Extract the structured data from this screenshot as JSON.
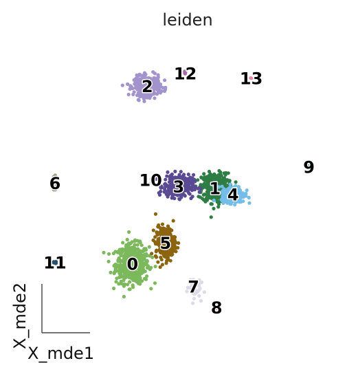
{
  "chart_data": {
    "type": "scatter",
    "title": "leiden",
    "xlabel": "X_mde1",
    "ylabel": "X_mde2",
    "xlim": [
      -1.0,
      1.0
    ],
    "ylim": [
      -1.0,
      1.0
    ],
    "grid": false,
    "legend": "on data",
    "clusters": [
      {
        "name": "0",
        "color": "#7cb95c",
        "center": [
          -0.28,
          -0.42
        ],
        "spread": [
          0.1,
          0.12
        ],
        "count": 520
      },
      {
        "name": "1",
        "color": "#2e7d45",
        "center": [
          0.22,
          0.05
        ],
        "spread": [
          0.08,
          0.09
        ],
        "count": 420
      },
      {
        "name": "2",
        "color": "#a393cc",
        "center": [
          -0.19,
          0.68
        ],
        "spread": [
          0.08,
          0.06
        ],
        "count": 380
      },
      {
        "name": "3",
        "color": "#5a4a94",
        "center": [
          0.0,
          0.06
        ],
        "spread": [
          0.09,
          0.07
        ],
        "count": 300
      },
      {
        "name": "4",
        "color": "#74bde9",
        "center": [
          0.33,
          0.01
        ],
        "spread": [
          0.07,
          0.05
        ],
        "count": 260
      },
      {
        "name": "5",
        "color": "#8c6410",
        "center": [
          -0.08,
          -0.29
        ],
        "spread": [
          0.06,
          0.1
        ],
        "count": 260
      },
      {
        "name": "6",
        "color": "#a89f88",
        "center": [
          -0.75,
          0.08
        ],
        "spread": [
          0.01,
          0.06
        ],
        "count": 30
      },
      {
        "name": "7",
        "color": "#dddbea",
        "center": [
          0.09,
          -0.56
        ],
        "spread": [
          0.04,
          0.07
        ],
        "count": 50
      },
      {
        "name": "8",
        "color": "#ea7b72",
        "center": [
          0.23,
          -0.69
        ],
        "spread": [
          0.02,
          0.01
        ],
        "count": 12
      },
      {
        "name": "9",
        "color": "#3d8fc0",
        "center": [
          0.79,
          0.18
        ],
        "spread": [
          0.01,
          0.01
        ],
        "count": 4
      },
      {
        "name": "10",
        "color": "#dcdcdc",
        "center": [
          -0.17,
          0.1
        ],
        "spread": [
          0.02,
          0.02
        ],
        "count": 3
      },
      {
        "name": "11",
        "color": "#25516e",
        "center": [
          -0.75,
          -0.41
        ],
        "spread": [
          0.01,
          0.01
        ],
        "count": 6
      },
      {
        "name": "12",
        "color": "#a66aa6",
        "center": [
          0.04,
          0.76
        ],
        "spread": [
          0.01,
          0.01
        ],
        "count": 5
      },
      {
        "name": "13",
        "color": "#e98aa8",
        "center": [
          0.44,
          0.73
        ],
        "spread": [
          0.003,
          0.003
        ],
        "count": 2
      }
    ]
  }
}
